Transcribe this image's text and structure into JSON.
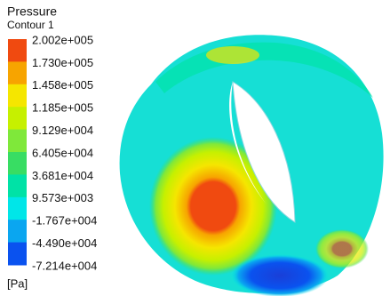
{
  "legend": {
    "title": "Pressure",
    "subtitle": "Contour 1",
    "labels": [
      "2.002e+005",
      "1.730e+005",
      "1.458e+005",
      "1.185e+005",
      "9.129e+004",
      "6.405e+004",
      "3.681e+004",
      "9.573e+003",
      "-1.767e+004",
      "-4.490e+004",
      "-7.214e+004"
    ],
    "colors": [
      "#f04a10",
      "#f7a400",
      "#f5e600",
      "#c6f000",
      "#7fe83a",
      "#38dd63",
      "#00e2a6",
      "#00e6e8",
      "#0aa6f0",
      "#0a52ef"
    ],
    "unit": "[Pa]"
  }
}
